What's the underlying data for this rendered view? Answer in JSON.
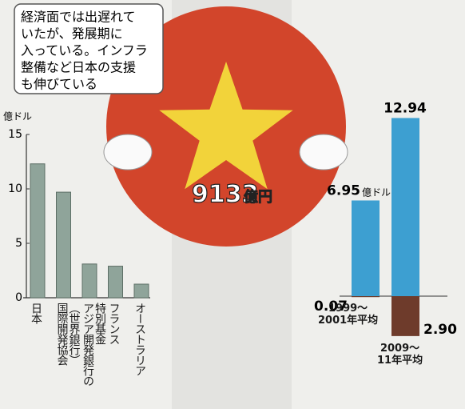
{
  "chart_data": [
    {
      "type": "bar",
      "unit": "億ドル",
      "categories": [
        "日本",
        "国際開発協会\n（世界銀行）",
        "アジア開発銀行の\n特別基金",
        "フランス",
        "オーストラリア"
      ],
      "values": [
        12.3,
        9.7,
        3.1,
        2.9,
        1.25
      ],
      "color": "#8fa49a",
      "ylim": [
        0,
        15
      ],
      "yticks": [
        0,
        5,
        10,
        15
      ]
    },
    {
      "type": "stacked_bar",
      "unit": "億ドル",
      "big_number": "9133",
      "big_unit": "億円",
      "callout": [
        "経済面では出遅れて",
        "いたが、発展期に",
        "入っている。インフラ",
        "整備など日本の支援",
        "も伸びている"
      ],
      "categories": [
        "1999～\n2001年平均",
        "2009～\n11年平均"
      ],
      "series": [
        {
          "color": "#3d9fd1",
          "values": [
            6.95,
            12.94
          ],
          "value_labels": [
            "6.95",
            "12.94"
          ]
        },
        {
          "color": "#6e3b2b",
          "values": [
            -0.07,
            -2.9
          ],
          "value_labels": [
            "0.07",
            "2.90"
          ]
        }
      ],
      "ylim": [
        -3,
        13
      ]
    }
  ]
}
